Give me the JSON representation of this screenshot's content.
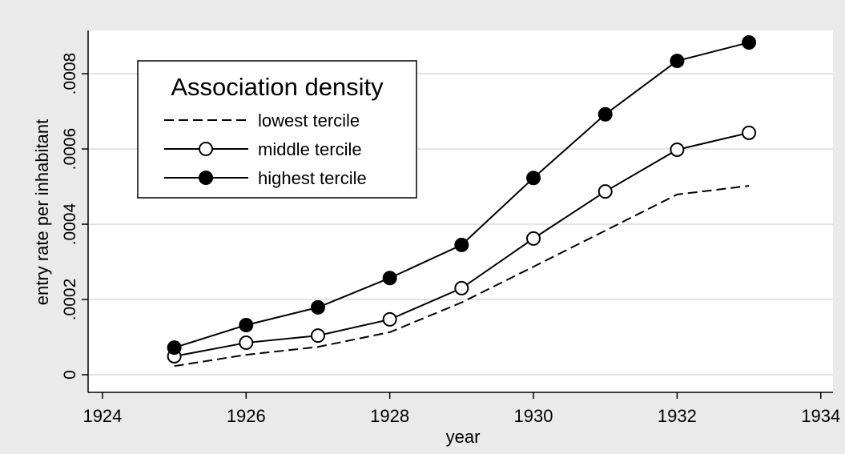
{
  "chart_data": {
    "type": "line",
    "xlabel": "year",
    "ylabel": "entry rate per inhabitant",
    "x": [
      1925,
      1926,
      1927,
      1928,
      1929,
      1930,
      1931,
      1932,
      1933
    ],
    "series": [
      {
        "name": "lowest tercile",
        "color": "#000000",
        "line_style": "dashed",
        "marker": "none",
        "values": [
          2.3e-05,
          5.3e-05,
          7.4e-05,
          0.000113,
          0.000192,
          0.000287,
          0.000383,
          0.000479,
          0.000502
        ]
      },
      {
        "name": "middle tercile",
        "color": "#000000",
        "line_style": "solid",
        "marker": "open",
        "values": [
          4.9e-05,
          8.5e-05,
          0.000104,
          0.000147,
          0.00023,
          0.000362,
          0.000487,
          0.000598,
          0.000643
        ]
      },
      {
        "name": "highest tercile",
        "color": "#000000",
        "line_style": "solid",
        "marker": "filled",
        "values": [
          7.2e-05,
          0.000132,
          0.000179,
          0.000257,
          0.000345,
          0.000523,
          0.000692,
          0.000834,
          0.000883
        ]
      }
    ],
    "legend_title": "Association density",
    "legend_position": "upper left",
    "xlim": [
      1923.8,
      1934.17
    ],
    "xticks": [
      1924,
      1926,
      1928,
      1930,
      1932,
      1934
    ],
    "ylim": [
      -4.68e-05,
      0.000915
    ],
    "yticks": [
      0,
      {
        "value": 0.0002,
        "label": ".0002"
      },
      {
        "value": 0.0004,
        "label": ".0004"
      },
      {
        "value": 0.0006,
        "label": ".0006"
      },
      {
        "value": 0.0008,
        "label": ".0008"
      }
    ],
    "grid": true
  }
}
